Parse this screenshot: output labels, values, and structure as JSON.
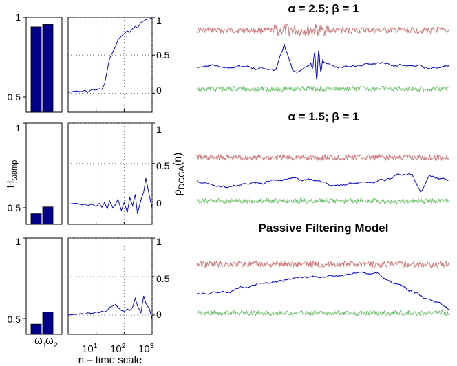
{
  "colors": {
    "bar": "#00008b",
    "trace_top": "#cd7b7b",
    "trace_mid": "#0000cd",
    "trace_bottom": "#6cc36c",
    "axis": "#000000",
    "grid": "#555555"
  },
  "figure": {
    "bar_ylabel": "H",
    "bar_ylabel_sub_omega": "ω",
    "bar_ylabel_sub_amp": "amp",
    "rho_label_main": "ρ",
    "rho_label_sub": "DCCA",
    "rho_label_suffix": "(n)",
    "xlabel": "n – time scale",
    "bar_category_labels": [
      {
        "main": "ω",
        "sub": "1"
      },
      {
        "main": "ω",
        "sub": "2"
      }
    ],
    "x_tick_labels": [
      {
        "base": "10",
        "exp": "1"
      },
      {
        "base": "10",
        "exp": "2"
      },
      {
        "base": "10",
        "exp": "3"
      }
    ],
    "bar_tick_labels": [
      "1",
      "0.5"
    ],
    "rho_tick_labels": [
      "1",
      "0.5",
      "0"
    ]
  },
  "chart_data": [
    {
      "type": "bar",
      "panel": "row-1-bars",
      "categories": [
        "ω1",
        "ω2"
      ],
      "values": [
        0.94,
        0.955
      ],
      "ylim": [
        0.4,
        1.0
      ]
    },
    {
      "type": "line",
      "panel": "row-1-rho",
      "x_scale": "log",
      "xlim": [
        1,
        1000
      ],
      "ylim": [
        -0.25,
        1.0
      ],
      "grid": true,
      "x": [
        1,
        2,
        3,
        4,
        5,
        7,
        10,
        13,
        16,
        20,
        25,
        30,
        40,
        50,
        60,
        80,
        100,
        130,
        160,
        200,
        250,
        300,
        400,
        500,
        600,
        800,
        1000
      ],
      "y": [
        0.01,
        0.03,
        0.02,
        0.04,
        0.01,
        0.05,
        0.04,
        0.06,
        0.05,
        0.12,
        0.3,
        0.45,
        0.55,
        0.62,
        0.7,
        0.75,
        0.78,
        0.82,
        0.8,
        0.85,
        0.88,
        0.86,
        0.93,
        0.95,
        0.97,
        0.98,
        0.99
      ]
    },
    {
      "type": "line",
      "panel": "row-1-traces",
      "title": "α = 2.5; β = 1",
      "series_colors": [
        "trace_top",
        "trace_mid",
        "trace_bottom"
      ]
    },
    {
      "type": "bar",
      "panel": "row-2-bars",
      "categories": [
        "ω1",
        "ω2"
      ],
      "values": [
        0.465,
        0.505
      ],
      "ylim": [
        0.4,
        1.0
      ]
    },
    {
      "type": "line",
      "panel": "row-2-rho",
      "x_scale": "log",
      "xlim": [
        1,
        1000
      ],
      "ylim": [
        -0.25,
        1.0
      ],
      "grid": true,
      "x": [
        1,
        2,
        3,
        4,
        5,
        7,
        10,
        13,
        16,
        20,
        25,
        30,
        40,
        50,
        60,
        80,
        100,
        130,
        160,
        200,
        250,
        300,
        400,
        500,
        600,
        800,
        1000
      ],
      "y": [
        0.0,
        0.01,
        -0.01,
        0.0,
        -0.02,
        0.0,
        -0.03,
        0.01,
        -0.04,
        0.02,
        -0.06,
        0.04,
        -0.05,
        0.0,
        0.06,
        -0.08,
        0.02,
        -0.1,
        0.08,
        -0.02,
        0.12,
        -0.12,
        0.05,
        0.15,
        0.32,
        0.1,
        -0.05
      ]
    },
    {
      "type": "line",
      "panel": "row-2-traces",
      "title": "α = 1.5; β = 1",
      "series_colors": [
        "trace_top",
        "trace_mid",
        "trace_bottom"
      ]
    },
    {
      "type": "bar",
      "panel": "row-3-bars",
      "categories": [
        "ω1",
        "ω2"
      ],
      "values": [
        0.465,
        0.54
      ],
      "ylim": [
        0.4,
        1.0
      ]
    },
    {
      "type": "line",
      "panel": "row-3-rho",
      "x_scale": "log",
      "xlim": [
        1,
        1000
      ],
      "ylim": [
        -0.25,
        1.0
      ],
      "grid": true,
      "x": [
        1,
        2,
        3,
        4,
        5,
        7,
        10,
        13,
        16,
        20,
        25,
        30,
        40,
        50,
        60,
        80,
        100,
        130,
        160,
        200,
        250,
        300,
        400,
        500,
        600,
        800,
        1000
      ],
      "y": [
        0.0,
        0.01,
        0.02,
        0.01,
        0.03,
        0.02,
        0.04,
        0.03,
        0.05,
        0.04,
        0.06,
        0.1,
        0.12,
        0.14,
        0.1,
        0.06,
        0.05,
        0.08,
        0.06,
        0.1,
        0.22,
        0.12,
        0.03,
        0.25,
        0.15,
        0.08,
        -0.05
      ]
    },
    {
      "type": "line",
      "panel": "row-3-traces",
      "title": "Passive Filtering Model",
      "series_colors": [
        "trace_top",
        "trace_mid",
        "trace_bottom"
      ]
    }
  ]
}
